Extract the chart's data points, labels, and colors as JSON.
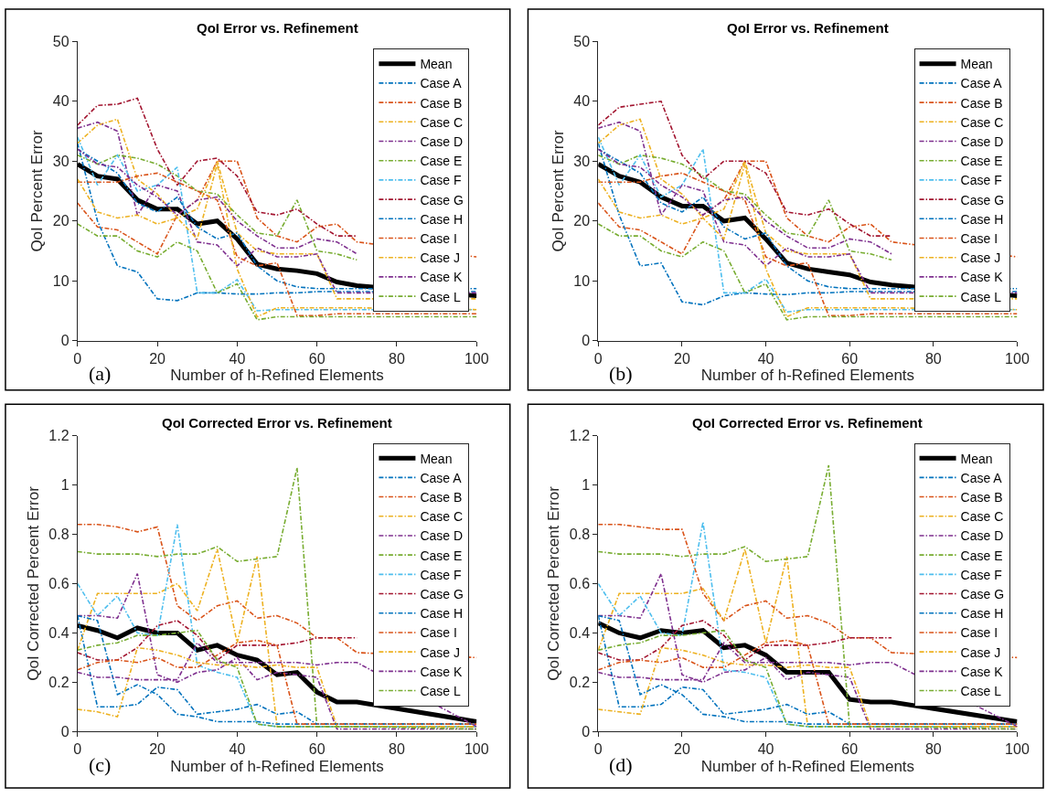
{
  "chart_data": [
    {
      "type": "line",
      "title": "QoI Error vs. Refinement",
      "xlabel": "Number of h-Refined Elements",
      "ylabel": "QoI Percent Error",
      "annotations": [
        "(a)"
      ],
      "legend": "top right",
      "x": [
        0,
        5,
        10,
        15,
        20,
        25,
        30,
        35,
        40,
        45,
        50,
        55,
        60,
        65,
        70,
        100
      ],
      "xlim": [
        0,
        100
      ],
      "xticks": [
        0,
        20,
        40,
        60,
        80,
        100
      ],
      "ylim": [
        0,
        50
      ],
      "yticks": [
        0,
        10,
        20,
        30,
        40,
        50
      ],
      "series": [
        {
          "name": "Mean",
          "color": "#000000",
          "line_style": "solid",
          "values": [
            29.5,
            27.5,
            27,
            23.5,
            22,
            22,
            19.5,
            20,
            17,
            12.8,
            12,
            11.7,
            11.2,
            9.8,
            9.2,
            7.5
          ]
        },
        {
          "name": "Case A",
          "color": "#0072bd",
          "line_style": "dashed",
          "values": [
            33,
            20,
            12.5,
            11.5,
            7,
            6.7,
            8,
            8,
            7.8,
            7.8,
            8,
            8,
            8.2,
            8.2,
            8.2,
            8.2
          ]
        },
        {
          "name": "Case B",
          "color": "#d95319",
          "line_style": "dashed",
          "values": [
            23,
            19,
            18.5,
            16.5,
            14.5,
            21,
            23.5,
            30,
            30,
            20.5,
            17.5,
            16.5,
            19,
            19.5,
            16.5,
            14
          ]
        },
        {
          "name": "Case C",
          "color": "#edb120",
          "line_style": "dashed",
          "values": [
            33,
            36,
            37,
            27,
            24.5,
            20.5,
            22,
            30,
            18,
            15,
            14.5,
            14.5,
            14.5,
            7,
            7,
            7
          ]
        },
        {
          "name": "Case D",
          "color": "#7e2f8e",
          "line_style": "dashed",
          "values": [
            35.5,
            36.5,
            35,
            21,
            26,
            25,
            16.5,
            16,
            12.5,
            15.5,
            14,
            14,
            14.5,
            8,
            8,
            8
          ]
        },
        {
          "name": "Case E",
          "color": "#77ac30",
          "line_style": "dashed",
          "values": [
            31,
            29.5,
            31,
            30.5,
            29.5,
            27.5,
            25,
            24.5,
            21,
            18,
            17.5,
            23.5,
            15,
            14.5,
            13.5,
            null
          ]
        },
        {
          "name": "Case F",
          "color": "#4dbeee",
          "line_style": "dashed",
          "values": [
            34,
            26,
            31,
            25,
            26,
            29,
            8,
            8,
            10.2,
            5,
            5.2,
            5.2,
            5.2,
            5.2,
            5.2,
            5.2
          ]
        },
        {
          "name": "Case G",
          "color": "#a2142f",
          "line_style": "dashed",
          "values": [
            36,
            39.3,
            39.5,
            40.5,
            32,
            26,
            30,
            30.5,
            27.5,
            21.5,
            21,
            22,
            19.5,
            17.5,
            17.5,
            null
          ]
        },
        {
          "name": "Case H",
          "color": "#0072bd",
          "line_style": "dashed",
          "values": [
            32,
            30,
            28,
            23,
            21.5,
            24,
            19,
            17,
            18,
            12.5,
            10,
            9,
            8.7,
            8.7,
            8.7,
            8.7
          ]
        },
        {
          "name": "Case I",
          "color": "#d95319",
          "line_style": "dashed",
          "values": [
            26.5,
            26.5,
            26.5,
            27.5,
            28,
            26.5,
            25,
            23.5,
            14,
            12.5,
            13,
            4.2,
            4.2,
            4.5,
            4.5,
            4.5
          ]
        },
        {
          "name": "Case J",
          "color": "#edb120",
          "line_style": "dashed",
          "values": [
            27,
            21.5,
            20.5,
            21,
            19.5,
            20.5,
            17,
            29.5,
            12,
            4,
            5.5,
            5.5,
            5.5,
            5.5,
            5.5,
            5.2
          ]
        },
        {
          "name": "Case K",
          "color": "#7e2f8e",
          "line_style": "dashed",
          "values": [
            32,
            29.5,
            29,
            26,
            24,
            21,
            23.5,
            24,
            20,
            17.5,
            15.5,
            15.5,
            17,
            16.5,
            14.5,
            null
          ]
        },
        {
          "name": "Case L",
          "color": "#77ac30",
          "line_style": "dashed",
          "values": [
            19.5,
            17.5,
            17.5,
            15,
            14,
            16.5,
            15,
            8,
            9.5,
            3.5,
            4,
            4,
            4,
            4,
            4,
            4
          ]
        }
      ]
    },
    {
      "type": "line",
      "title": "QoI Error vs. Refinement",
      "xlabel": "Number of h-Refined Elements",
      "ylabel": "QoI Percent Error",
      "annotations": [
        "(b)"
      ],
      "legend": "top right",
      "x": [
        0,
        5,
        10,
        15,
        20,
        25,
        30,
        35,
        40,
        45,
        50,
        55,
        60,
        65,
        70,
        100
      ],
      "xlim": [
        0,
        100
      ],
      "xticks": [
        0,
        20,
        40,
        60,
        80,
        100
      ],
      "ylim": [
        0,
        50
      ],
      "yticks": [
        0,
        10,
        20,
        30,
        40,
        50
      ],
      "series": [
        {
          "name": "Mean",
          "color": "#000000",
          "line_style": "solid",
          "values": [
            29.5,
            27.5,
            26.5,
            24,
            22.5,
            22.5,
            20,
            20.5,
            17,
            13,
            12,
            11.5,
            11,
            9.8,
            9.3,
            7.5
          ]
        },
        {
          "name": "Case A",
          "color": "#0072bd",
          "line_style": "dashed",
          "values": [
            33,
            21,
            12.5,
            13,
            6.5,
            6,
            7.5,
            8,
            7.8,
            7.7,
            8,
            8,
            8.2,
            8.2,
            8.2,
            8.2
          ]
        },
        {
          "name": "Case B",
          "color": "#d95319",
          "line_style": "dashed",
          "values": [
            23,
            19,
            18.5,
            16.5,
            14.5,
            21,
            23.5,
            30,
            30,
            20.5,
            17.5,
            16.5,
            19,
            19.5,
            16.5,
            14
          ]
        },
        {
          "name": "Case C",
          "color": "#edb120",
          "line_style": "dashed",
          "values": [
            33,
            36,
            37,
            27,
            24.5,
            20.5,
            22,
            30,
            18,
            15,
            14.5,
            14.5,
            14.5,
            7,
            7,
            7
          ]
        },
        {
          "name": "Case D",
          "color": "#7e2f8e",
          "line_style": "dashed",
          "values": [
            35.5,
            36.5,
            35,
            21,
            26,
            25,
            16.5,
            16,
            12.5,
            15.5,
            14,
            14,
            14.5,
            8,
            8,
            8
          ]
        },
        {
          "name": "Case E",
          "color": "#77ac30",
          "line_style": "dashed",
          "values": [
            31,
            29.5,
            31,
            30.5,
            29.5,
            27.5,
            25,
            24.5,
            21,
            18,
            17.5,
            23.5,
            15,
            14.5,
            13.5,
            null
          ]
        },
        {
          "name": "Case F",
          "color": "#4dbeee",
          "line_style": "dashed",
          "values": [
            34,
            26,
            31,
            24,
            26,
            32,
            8,
            8,
            10.3,
            4.8,
            5.2,
            5.2,
            5.2,
            5.2,
            5.2,
            5.2
          ]
        },
        {
          "name": "Case G",
          "color": "#a2142f",
          "line_style": "dashed",
          "values": [
            36,
            39,
            39.5,
            40,
            31,
            27,
            30,
            30,
            28,
            21.5,
            21,
            22,
            19.5,
            17.5,
            17.5,
            null
          ]
        },
        {
          "name": "Case H",
          "color": "#0072bd",
          "line_style": "dashed",
          "values": [
            32,
            30,
            28,
            23,
            21.5,
            24,
            19,
            17,
            18,
            12.5,
            10,
            9,
            8.7,
            8.7,
            8.7,
            8.7
          ]
        },
        {
          "name": "Case I",
          "color": "#d95319",
          "line_style": "dashed",
          "values": [
            26.5,
            26.5,
            26.5,
            27.5,
            28,
            26.5,
            25,
            23.5,
            14,
            12.5,
            13,
            4.2,
            4.2,
            4.5,
            4.5,
            4.5
          ]
        },
        {
          "name": "Case J",
          "color": "#edb120",
          "line_style": "dashed",
          "values": [
            27,
            21.5,
            20.5,
            21,
            19.5,
            20.5,
            17,
            29.5,
            12,
            4,
            5.5,
            5.5,
            5.5,
            5.5,
            5.5,
            5.2
          ]
        },
        {
          "name": "Case K",
          "color": "#7e2f8e",
          "line_style": "dashed",
          "values": [
            32,
            29.5,
            29,
            26,
            24,
            21,
            23.5,
            24,
            20,
            17.5,
            15.5,
            15.5,
            17,
            16.5,
            14.5,
            null
          ]
        },
        {
          "name": "Case L",
          "color": "#77ac30",
          "line_style": "dashed",
          "values": [
            19.5,
            17.5,
            17.5,
            15,
            14,
            16.5,
            15,
            8,
            9.5,
            3.5,
            4,
            4,
            4,
            4,
            4,
            4
          ]
        }
      ]
    },
    {
      "type": "line",
      "title": "QoI Corrected Error vs. Refinement",
      "xlabel": "Number of h-Refined Elements",
      "ylabel": "QoI Corrected Percent Error",
      "annotations": [
        "(c)"
      ],
      "legend": "top right",
      "x": [
        0,
        5,
        10,
        15,
        20,
        25,
        30,
        35,
        40,
        45,
        50,
        55,
        60,
        65,
        70,
        100
      ],
      "xlim": [
        0,
        100
      ],
      "xticks": [
        0,
        20,
        40,
        60,
        80,
        100
      ],
      "ylim": [
        0,
        1.2
      ],
      "yticks": [
        0,
        0.2,
        0.4,
        0.6,
        0.8,
        1,
        1.2
      ],
      "series": [
        {
          "name": "Mean",
          "color": "#000000",
          "line_style": "solid",
          "values": [
            0.43,
            0.41,
            0.38,
            0.42,
            0.4,
            0.4,
            0.33,
            0.35,
            0.31,
            0.29,
            0.23,
            0.24,
            0.16,
            0.12,
            0.12,
            0.04
          ]
        },
        {
          "name": "Case A",
          "color": "#0072bd",
          "line_style": "dashed",
          "values": [
            0.47,
            0.1,
            0.1,
            0.11,
            0.18,
            0.17,
            0.07,
            0.08,
            0.09,
            0.11,
            0.07,
            0.08,
            0.03,
            0.03,
            0.03,
            0.03
          ]
        },
        {
          "name": "Case B",
          "color": "#d95319",
          "line_style": "dashed",
          "values": [
            0.84,
            0.84,
            0.83,
            0.81,
            0.83,
            0.51,
            0.45,
            0.51,
            0.53,
            0.46,
            0.47,
            0.44,
            0.38,
            0.38,
            0.32,
            0.3
          ]
        },
        {
          "name": "Case C",
          "color": "#edb120",
          "line_style": "dashed",
          "values": [
            0.33,
            0.56,
            0.56,
            0.56,
            0.56,
            0.6,
            0.49,
            0.74,
            0.36,
            0.71,
            0.02,
            0.02,
            0.02,
            0.02,
            0.02,
            0.02
          ]
        },
        {
          "name": "Case D",
          "color": "#7e2f8e",
          "line_style": "dashed",
          "values": [
            0.47,
            0.47,
            0.46,
            0.64,
            0.23,
            0.2,
            0.24,
            0.25,
            0.3,
            0.21,
            0.24,
            0.23,
            0.22,
            0.01,
            0.01,
            0.01
          ]
        },
        {
          "name": "Case E",
          "color": "#77ac30",
          "line_style": "dashed",
          "values": [
            0.73,
            0.72,
            0.72,
            0.72,
            0.71,
            0.72,
            0.72,
            0.75,
            0.69,
            0.7,
            0.71,
            1.07,
            0.02,
            0.02,
            0.02,
            0.02
          ]
        },
        {
          "name": "Case F",
          "color": "#4dbeee",
          "line_style": "dashed",
          "values": [
            0.6,
            0.47,
            0.55,
            0.4,
            0.39,
            0.84,
            0.27,
            0.24,
            0.22,
            0.03,
            0.02,
            0.02,
            0.02,
            0.02,
            0.02,
            0.02
          ]
        },
        {
          "name": "Case G",
          "color": "#a2142f",
          "line_style": "dashed",
          "values": [
            0.32,
            0.29,
            0.29,
            0.34,
            0.43,
            0.45,
            0.39,
            0.29,
            0.35,
            0.35,
            0.35,
            0.36,
            0.38,
            0.38,
            0.38,
            null
          ]
        },
        {
          "name": "Case H",
          "color": "#0072bd",
          "line_style": "dashed",
          "values": [
            0.47,
            0.45,
            0.15,
            0.19,
            0.15,
            0.07,
            0.06,
            0.04,
            0.04,
            0.04,
            0.03,
            0.03,
            0.03,
            0.03,
            0.03,
            0.03
          ]
        },
        {
          "name": "Case I",
          "color": "#d95319",
          "line_style": "dashed",
          "values": [
            0.25,
            0.28,
            0.29,
            0.28,
            0.3,
            0.26,
            0.26,
            0.31,
            0.36,
            0.37,
            0.35,
            0.03,
            0.03,
            0.03,
            0.03,
            0.03
          ]
        },
        {
          "name": "Case J",
          "color": "#edb120",
          "line_style": "dashed",
          "values": [
            0.09,
            0.08,
            0.06,
            0.34,
            0.33,
            0.31,
            0.28,
            0.27,
            0.27,
            0.26,
            0.27,
            0.26,
            0.26,
            0.02,
            0.02,
            0.02
          ]
        },
        {
          "name": "Case K",
          "color": "#7e2f8e",
          "line_style": "dashed",
          "values": [
            0.24,
            0.22,
            0.22,
            0.21,
            0.21,
            0.21,
            0.36,
            0.28,
            0.28,
            0.28,
            0.28,
            0.28,
            0.27,
            0.28,
            0.28,
            0.02
          ]
        },
        {
          "name": "Case L",
          "color": "#77ac30",
          "line_style": "dashed",
          "values": [
            0.33,
            0.35,
            0.36,
            0.39,
            0.39,
            0.4,
            0.41,
            0.29,
            0.26,
            0.03,
            0.02,
            0.02,
            0.02,
            0.02,
            0.02,
            0.01
          ]
        }
      ]
    },
    {
      "type": "line",
      "title": "QoI Corrected Error vs. Refinement",
      "xlabel": "Number of h-Refined Elements",
      "ylabel": "QoI Corrected Percent Error",
      "annotations": [
        "(d)"
      ],
      "legend": "top right",
      "x": [
        0,
        5,
        10,
        15,
        20,
        25,
        30,
        35,
        40,
        45,
        50,
        55,
        60,
        65,
        70,
        100
      ],
      "xlim": [
        0,
        100
      ],
      "xticks": [
        0,
        20,
        40,
        60,
        80,
        100
      ],
      "ylim": [
        0,
        1.2
      ],
      "yticks": [
        0,
        0.2,
        0.4,
        0.6,
        0.8,
        1,
        1.2
      ],
      "series": [
        {
          "name": "Mean",
          "color": "#000000",
          "line_style": "solid",
          "values": [
            0.44,
            0.4,
            0.38,
            0.41,
            0.4,
            0.41,
            0.34,
            0.35,
            0.31,
            0.24,
            0.24,
            0.24,
            0.13,
            0.12,
            0.12,
            0.04
          ]
        },
        {
          "name": "Case A",
          "color": "#0072bd",
          "line_style": "dashed",
          "values": [
            0.47,
            0.1,
            0.1,
            0.11,
            0.18,
            0.17,
            0.07,
            0.08,
            0.09,
            0.11,
            0.07,
            0.08,
            0.03,
            0.03,
            0.03,
            0.03
          ]
        },
        {
          "name": "Case B",
          "color": "#d95319",
          "line_style": "dashed",
          "values": [
            0.84,
            0.84,
            0.83,
            0.82,
            0.82,
            0.56,
            0.45,
            0.51,
            0.53,
            0.46,
            0.47,
            0.44,
            0.38,
            0.38,
            0.32,
            0.3
          ]
        },
        {
          "name": "Case C",
          "color": "#edb120",
          "line_style": "dashed",
          "values": [
            0.33,
            0.56,
            0.56,
            0.56,
            0.56,
            0.58,
            0.45,
            0.74,
            0.36,
            0.71,
            0.02,
            0.02,
            0.02,
            0.02,
            0.02,
            0.02
          ]
        },
        {
          "name": "Case D",
          "color": "#7e2f8e",
          "line_style": "dashed",
          "values": [
            0.47,
            0.47,
            0.46,
            0.64,
            0.23,
            0.2,
            0.24,
            0.25,
            0.3,
            0.21,
            0.24,
            0.23,
            0.22,
            0.01,
            0.01,
            0.01
          ]
        },
        {
          "name": "Case E",
          "color": "#77ac30",
          "line_style": "dashed",
          "values": [
            0.73,
            0.72,
            0.72,
            0.72,
            0.71,
            0.72,
            0.72,
            0.75,
            0.69,
            0.7,
            0.71,
            1.08,
            0.02,
            0.02,
            0.02,
            0.02
          ]
        },
        {
          "name": "Case F",
          "color": "#4dbeee",
          "line_style": "dashed",
          "values": [
            0.6,
            0.47,
            0.55,
            0.4,
            0.39,
            0.85,
            0.25,
            0.24,
            0.22,
            0.03,
            0.02,
            0.02,
            0.02,
            0.02,
            0.02,
            0.02
          ]
        },
        {
          "name": "Case G",
          "color": "#a2142f",
          "line_style": "dashed",
          "values": [
            0.32,
            0.29,
            0.29,
            0.34,
            0.43,
            0.45,
            0.39,
            0.29,
            0.35,
            0.35,
            0.35,
            0.36,
            0.38,
            0.38,
            0.38,
            null
          ]
        },
        {
          "name": "Case H",
          "color": "#0072bd",
          "line_style": "dashed",
          "values": [
            0.47,
            0.45,
            0.15,
            0.19,
            0.15,
            0.07,
            0.06,
            0.04,
            0.04,
            0.04,
            0.03,
            0.03,
            0.03,
            0.03,
            0.03,
            0.03
          ]
        },
        {
          "name": "Case I",
          "color": "#d95319",
          "line_style": "dashed",
          "values": [
            0.25,
            0.28,
            0.29,
            0.28,
            0.3,
            0.26,
            0.26,
            0.31,
            0.36,
            0.37,
            0.35,
            0.03,
            0.03,
            0.03,
            0.03,
            0.03
          ]
        },
        {
          "name": "Case J",
          "color": "#edb120",
          "line_style": "dashed",
          "values": [
            0.09,
            0.08,
            0.07,
            0.34,
            0.33,
            0.31,
            0.28,
            0.27,
            0.27,
            0.26,
            0.27,
            0.26,
            0.26,
            0.02,
            0.02,
            0.02
          ]
        },
        {
          "name": "Case K",
          "color": "#7e2f8e",
          "line_style": "dashed",
          "values": [
            0.24,
            0.22,
            0.22,
            0.21,
            0.21,
            0.21,
            0.36,
            0.28,
            0.28,
            0.28,
            0.28,
            0.28,
            0.27,
            0.28,
            0.28,
            0.02
          ]
        },
        {
          "name": "Case L",
          "color": "#77ac30",
          "line_style": "dashed",
          "values": [
            0.33,
            0.35,
            0.36,
            0.39,
            0.39,
            0.4,
            0.41,
            0.29,
            0.26,
            0.03,
            0.02,
            0.02,
            0.02,
            0.02,
            0.02,
            0.01
          ]
        }
      ]
    }
  ]
}
